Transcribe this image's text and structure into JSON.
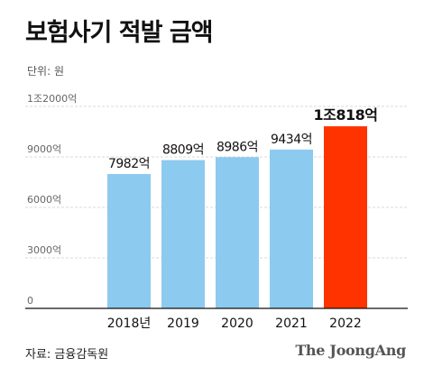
{
  "title": "보험사기 적발 금액",
  "unit_label": "단위: 원",
  "source": "자료: 금융감독원",
  "logo_text": "The JoongAng",
  "chart_data": {
    "type": "bar",
    "categories": [
      "2018년",
      "2019",
      "2020",
      "2021",
      "2022"
    ],
    "values": [
      7982,
      8809,
      8986,
      9434,
      10818
    ],
    "value_labels": [
      "7982억",
      "8809억",
      "8986억",
      "9434억",
      "1조818억"
    ],
    "yticks": [
      0,
      3000,
      6000,
      9000,
      12000
    ],
    "ytick_labels": [
      "0",
      "3000억",
      "6000억",
      "9000억",
      "1조2000억"
    ],
    "ylim": [
      0,
      12000
    ],
    "grid": true,
    "colors": {
      "default": "#8ccaf0",
      "highlight": "#ff3300",
      "grid": "#d9d9d9",
      "axis": "#111111"
    },
    "highlight_index": 4
  }
}
